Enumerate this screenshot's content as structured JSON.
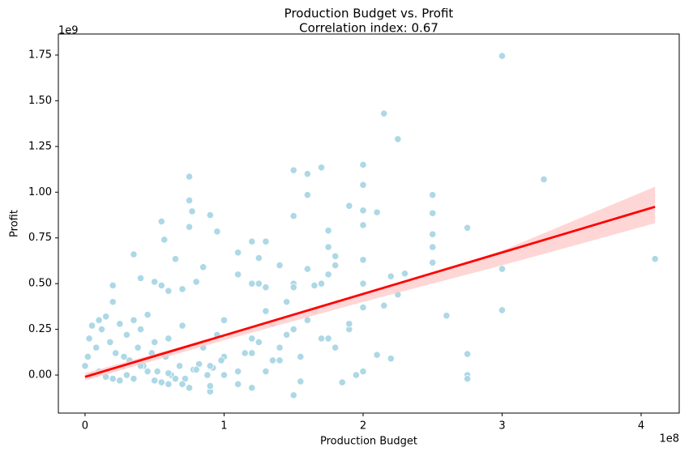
{
  "chart_data": {
    "type": "scatter",
    "title": "Production Budget vs. Profit",
    "subtitle": "Correlation index: 0.67",
    "x_label": "Production Budget",
    "y_label": "Profit",
    "x_offset_label": "1e8",
    "y_offset_label": "1e9",
    "xlim": [
      -0.192,
      4.274
    ],
    "ylim": [
      -0.208,
      1.865
    ],
    "xticks": [
      0,
      1,
      2,
      3,
      4
    ],
    "yticks": [
      {
        "value": 0,
        "label": "0.00"
      },
      {
        "value": 0.25,
        "label": "0.25"
      },
      {
        "value": 0.5,
        "label": "0.50"
      },
      {
        "value": 0.75,
        "label": "0.75"
      },
      {
        "value": 1,
        "label": "1.00"
      },
      {
        "value": 1.25,
        "label": "1.25"
      },
      {
        "value": 1.5,
        "label": "1.50"
      },
      {
        "value": 1.75,
        "label": "1.75"
      }
    ],
    "series": [
      {
        "color": "#add8e6",
        "x": [
          3.0,
          2.15,
          2.25,
          3.3,
          4.1,
          0.75,
          0.75,
          1.5,
          1.6,
          1.7,
          2.0,
          2.0,
          1.6,
          1.5,
          0.55,
          0.9,
          0.75,
          0.77,
          0.57,
          0.95,
          1.9,
          2.0,
          2.1,
          2.5,
          2.5,
          2.75,
          2.5,
          2.5,
          2.5,
          3.0,
          3.0,
          2.6,
          2.75,
          2.75,
          2.75,
          2.2,
          2.25,
          2.3,
          2.1,
          2.2,
          2.15,
          1.95,
          2.0,
          2.0,
          2.0,
          2.0,
          2.0,
          1.8,
          1.8,
          1.75,
          1.75,
          1.75,
          1.7,
          1.65,
          1.6,
          1.5,
          1.5,
          1.5,
          1.55,
          1.4,
          1.3,
          1.2,
          1.1,
          1.1,
          1.25,
          1.25,
          1.2,
          1.3,
          0.85,
          0.8,
          0.7,
          0.65,
          0.6,
          0.5,
          0.35,
          0.4,
          0.2,
          0.55,
          1.0,
          1.0,
          1.2,
          1.3,
          1.4,
          1.5,
          1.6,
          1.7,
          1.8,
          1.85,
          1.9,
          1.1,
          1.2,
          0.9,
          0.9,
          0.75,
          0.6,
          1.3,
          1.0,
          1.4,
          1.45,
          1.35,
          1.15,
          0.95,
          0.85,
          0.7,
          0.6,
          0.5,
          0.45,
          0.4,
          0.35,
          0.3,
          0.25,
          0.2,
          0.15,
          0.1,
          0.05,
          0.02,
          0.0,
          0.03,
          0.08,
          0.12,
          0.18,
          0.22,
          0.28,
          0.32,
          0.38,
          0.42,
          0.48,
          0.52,
          0.58,
          0.62,
          0.68,
          0.72,
          0.78,
          0.82,
          0.88,
          0.92,
          0.98,
          0.05,
          0.1,
          0.15,
          0.2,
          0.25,
          0.3,
          0.35,
          0.4,
          0.45,
          0.5,
          0.55,
          0.6,
          0.65,
          0.7,
          0.8,
          0.9,
          1.0,
          1.1,
          1.2,
          1.25,
          1.35,
          1.45,
          1.55,
          1.65,
          1.75,
          1.9
        ],
        "values": [
          1.745,
          1.43,
          1.29,
          1.07,
          0.635,
          1.085,
          0.955,
          1.12,
          1.1,
          1.135,
          1.15,
          1.04,
          0.985,
          0.87,
          0.84,
          0.875,
          0.81,
          0.895,
          0.74,
          0.785,
          0.925,
          0.9,
          0.89,
          0.985,
          0.885,
          0.805,
          0.77,
          0.7,
          0.615,
          0.58,
          0.355,
          0.325,
          0.115,
          0.0,
          -0.02,
          0.54,
          0.44,
          0.555,
          0.11,
          0.09,
          0.38,
          0.0,
          0.02,
          0.5,
          0.37,
          0.63,
          0.82,
          0.6,
          0.65,
          0.7,
          0.79,
          0.55,
          0.5,
          0.49,
          0.58,
          0.5,
          0.48,
          -0.11,
          -0.035,
          0.6,
          0.73,
          0.73,
          0.67,
          0.55,
          0.64,
          0.5,
          0.5,
          0.48,
          0.59,
          0.51,
          0.47,
          0.635,
          0.46,
          0.51,
          0.66,
          0.53,
          0.49,
          0.49,
          0.3,
          0.1,
          0.2,
          0.35,
          0.15,
          0.25,
          0.3,
          0.2,
          0.15,
          -0.04,
          0.25,
          -0.05,
          -0.07,
          -0.09,
          -0.06,
          -0.07,
          -0.05,
          0.02,
          0.0,
          0.08,
          0.4,
          0.28,
          0.12,
          0.22,
          0.15,
          0.27,
          0.2,
          0.18,
          0.33,
          0.25,
          0.3,
          0.22,
          0.28,
          0.4,
          0.32,
          0.3,
          0.27,
          0.1,
          0.05,
          0.2,
          0.15,
          0.25,
          0.18,
          0.12,
          0.1,
          0.08,
          0.15,
          0.05,
          0.12,
          0.02,
          0.1,
          0.0,
          0.05,
          -0.02,
          0.03,
          0.06,
          0.0,
          0.04,
          0.08,
          0.0,
          0.02,
          -0.01,
          -0.02,
          -0.03,
          0.0,
          -0.02,
          0.05,
          0.02,
          -0.03,
          -0.04,
          0.01,
          -0.02,
          -0.05,
          0.03,
          0.05,
          0.0,
          0.02,
          0.12,
          0.18,
          0.08,
          0.22,
          0.1,
          0.35,
          0.2,
          0.28
        ]
      }
    ],
    "regression": {
      "color": "#ff0000",
      "band_color": "#ffcccc",
      "x": [
        0,
        4.1
      ],
      "values": [
        -0.01,
        0.92
      ],
      "band_x": [
        0,
        1,
        2,
        3,
        4.1
      ],
      "band_lower": [
        -0.03,
        0.19,
        0.4,
        0.6,
        0.83
      ],
      "band_upper": [
        0.01,
        0.22,
        0.44,
        0.68,
        1.03
      ]
    }
  }
}
